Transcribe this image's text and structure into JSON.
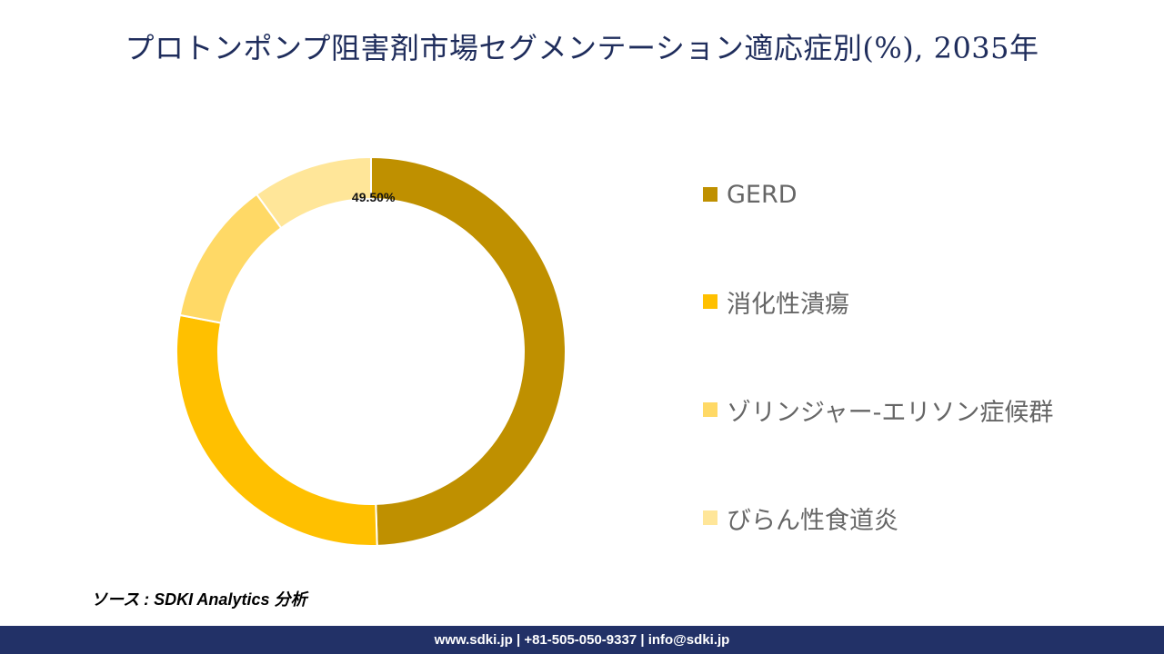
{
  "title": "プロトンポンプ阻害剤市場セグメンテーション適応症別(%), 2035年",
  "chart_data": {
    "type": "pie",
    "donut": true,
    "categories": [
      "GERD",
      "消化性潰瘍",
      "ゾリンジャー-エリソン症候群",
      "びらん性食道炎"
    ],
    "values": [
      49.5,
      28.5,
      12.0,
      10.0
    ],
    "colors": [
      "#bf9000",
      "#ffc000",
      "#ffd966",
      "#ffe699"
    ],
    "data_labels": [
      "49.50%",
      "",
      "",
      ""
    ],
    "legend_position": "right"
  },
  "source": "ソース : SDKI Analytics 分析",
  "footer": "www.sdki.jp | +81-505-050-9337 | info@sdki.jp"
}
